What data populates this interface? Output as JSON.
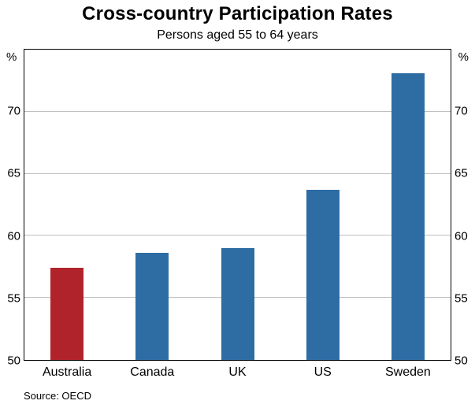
{
  "header": {
    "title": "Cross-country Participation Rates",
    "subtitle": "Persons aged 55 to 64 years"
  },
  "axes": {
    "unit_left": "%",
    "unit_right": "%"
  },
  "footer": {
    "source": "Source: OECD"
  },
  "colors": {
    "bar_blue": "#2e6da4",
    "bar_red": "#b1232a",
    "grid": "#bfbfbf",
    "axis": "#000000"
  },
  "chart_data": {
    "type": "bar",
    "title": "Cross-country Participation Rates",
    "subtitle": "Persons aged 55 to 64 years",
    "categories": [
      "Australia",
      "Canada",
      "UK",
      "US",
      "Sweden"
    ],
    "values": [
      57.4,
      58.6,
      59.0,
      63.7,
      73.1
    ],
    "bar_colors": [
      "#b1232a",
      "#2e6da4",
      "#2e6da4",
      "#2e6da4",
      "#2e6da4"
    ],
    "highlight_category": "Australia",
    "xlabel": "",
    "ylabel": "%",
    "ylim": [
      50,
      75
    ],
    "yticks": [
      50,
      55,
      60,
      65,
      70
    ],
    "grid": true,
    "legend": "none",
    "source": "Source: OECD"
  }
}
